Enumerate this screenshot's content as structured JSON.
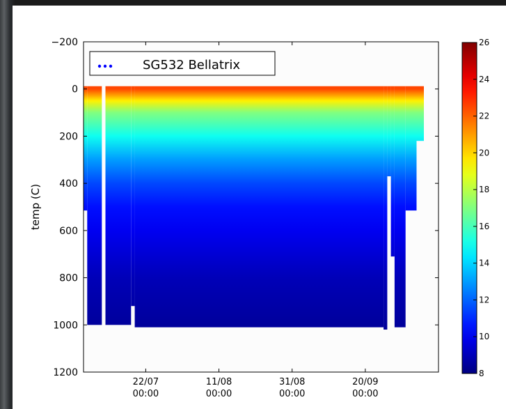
{
  "chart_data": {
    "type": "heatmap",
    "ylabel": "temp (C)",
    "ylim": [
      1200,
      -200
    ],
    "yticks": [
      -200,
      0,
      200,
      400,
      600,
      800,
      1000,
      1200
    ],
    "ytick_labels": [
      "−200",
      "0",
      "200",
      "400",
      "600",
      "800",
      "1000",
      "1200"
    ],
    "x_range": [
      "2016-07-05",
      "2016-10-10"
    ],
    "xticks": [
      {
        "date": "2016-07-22",
        "line1": "22/07",
        "line2": "00:00"
      },
      {
        "date": "2016-08-11",
        "line1": "11/08",
        "line2": "00:00"
      },
      {
        "date": "2016-08-31",
        "line1": "31/08",
        "line2": "00:00"
      },
      {
        "date": "2016-09-20",
        "line1": "20/09",
        "line2": "00:00"
      }
    ],
    "legend": {
      "label": "SG532 Bellatrix",
      "marker_color": "#0000ff",
      "placement": "top-left"
    },
    "colorbar": {
      "min": 8,
      "max": 26,
      "ticks": [
        8,
        10,
        12,
        14,
        16,
        18,
        20,
        22,
        24,
        26
      ],
      "colormap": "jet"
    },
    "temperature_profile": [
      {
        "depth": 0,
        "temp": 22.5
      },
      {
        "depth": 50,
        "temp": 19.5
      },
      {
        "depth": 100,
        "temp": 17
      },
      {
        "depth": 200,
        "temp": 15
      },
      {
        "depth": 300,
        "temp": 13
      },
      {
        "depth": 400,
        "temp": 11.5
      },
      {
        "depth": 500,
        "temp": 10.5
      },
      {
        "depth": 600,
        "temp": 10
      },
      {
        "depth": 800,
        "temp": 9
      },
      {
        "depth": 1000,
        "temp": 8.5
      }
    ],
    "max_depth_segments": [
      {
        "start": "2016-07-05",
        "end": "2016-07-06",
        "depth": 515
      },
      {
        "start": "2016-07-06",
        "end": "2016-07-10",
        "depth": 1000
      },
      {
        "start": "2016-07-11",
        "end": "2016-07-18",
        "depth": 1000
      },
      {
        "start": "2016-07-18",
        "end": "2016-07-19",
        "depth": 920
      },
      {
        "start": "2016-07-19",
        "end": "2016-09-25",
        "depth": 1010
      },
      {
        "start": "2016-09-25",
        "end": "2016-09-26",
        "depth": 1020
      },
      {
        "start": "2016-09-26",
        "end": "2016-09-27",
        "depth": 370
      },
      {
        "start": "2016-09-27",
        "end": "2016-09-28",
        "depth": 710
      },
      {
        "start": "2016-09-28",
        "end": "2016-10-01",
        "depth": 1010
      },
      {
        "start": "2016-10-01",
        "end": "2016-10-04",
        "depth": 515
      },
      {
        "start": "2016-10-04",
        "end": "2016-10-06",
        "depth": 220
      }
    ]
  }
}
